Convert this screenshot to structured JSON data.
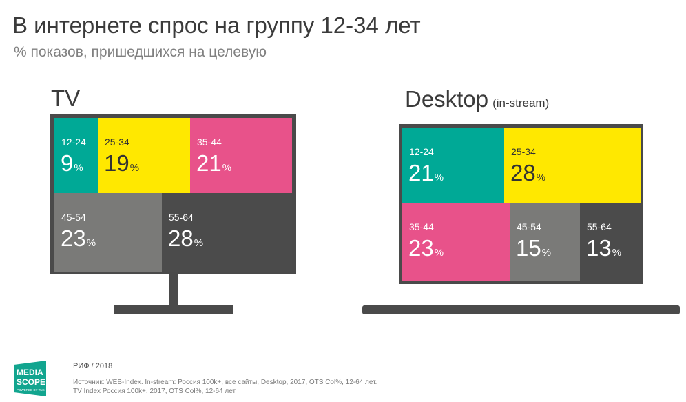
{
  "header": {
    "title": "В интернете спрос на группу 12-34 лет",
    "subtitle": "% показов, пришедшихся на целевую"
  },
  "chart_data": [
    {
      "type": "treemap",
      "title": "TV",
      "subtitle": "",
      "unit": "%",
      "categories": [
        "12-24",
        "25-34",
        "35-44",
        "45-54",
        "55-64"
      ],
      "values": [
        9,
        19,
        21,
        23,
        28
      ],
      "colors": [
        "#00a996",
        "#ffe800",
        "#e8528a",
        "#7a7a78",
        "#4b4b4b"
      ]
    },
    {
      "type": "treemap",
      "title": "Desktop",
      "subtitle": "(in-stream)",
      "unit": "%",
      "categories": [
        "12-24",
        "25-34",
        "35-44",
        "45-54",
        "55-64"
      ],
      "values": [
        21,
        28,
        23,
        15,
        13
      ],
      "colors": [
        "#00a996",
        "#ffe800",
        "#e8528a",
        "#7a7a78",
        "#4b4b4b"
      ]
    }
  ],
  "logo": {
    "text": [
      "MEDIA",
      "SCOPE"
    ],
    "tagline": "POWERED BY TNS",
    "color": "#12a58f"
  },
  "footer": {
    "year_label": "РИФ / 2018",
    "source_line1": "Источник: WEB-Index. In-stream: Россия 100k+, все сайты, Desktop, 2017, OTS Col%, 12-64 лет.",
    "source_line2": "TV Index Россия 100k+, 2017, OTS Col%, 12-64 лет"
  }
}
